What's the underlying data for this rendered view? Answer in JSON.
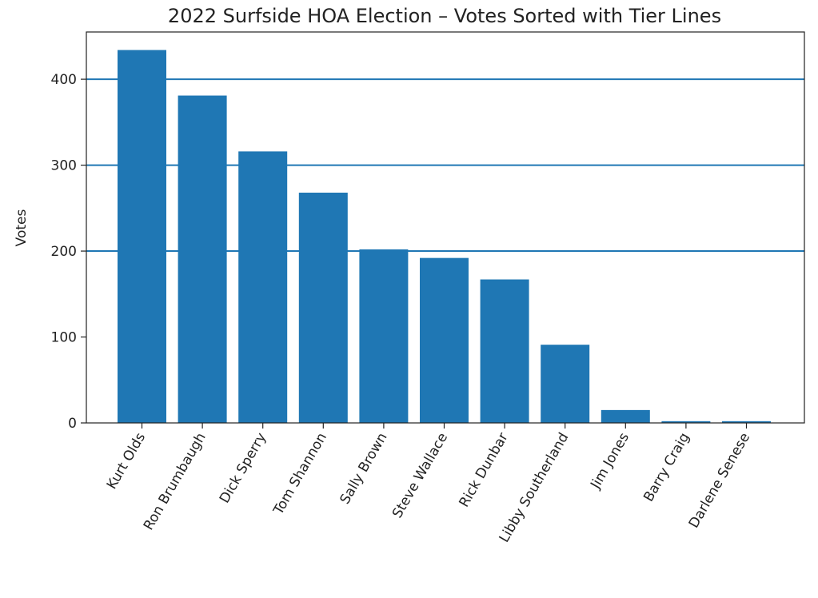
{
  "chart_data": {
    "type": "bar",
    "title": "2022 Surfside HOA Election – Votes Sorted with Tier Lines",
    "xlabel": "",
    "ylabel": "Votes",
    "categories": [
      "Kurt Olds",
      "Ron Brumbaugh",
      "Dick Sperry",
      "Tom Shannon",
      "Sally Brown",
      "Steve Wallace",
      "Rick Dunbar",
      "Libby Southerland",
      "Jim Jones",
      "Barry Craig",
      "Darlene Senese"
    ],
    "values": [
      434,
      381,
      316,
      268,
      202,
      192,
      167,
      91,
      15,
      2,
      2
    ],
    "ylim": [
      0,
      455
    ],
    "yticks": [
      0,
      100,
      200,
      300,
      400
    ],
    "tier_lines": [
      200,
      300,
      400
    ],
    "bar_color": "#1f77b4",
    "tier_line_color": "#1f77b4",
    "grid": false,
    "legend": "none"
  }
}
